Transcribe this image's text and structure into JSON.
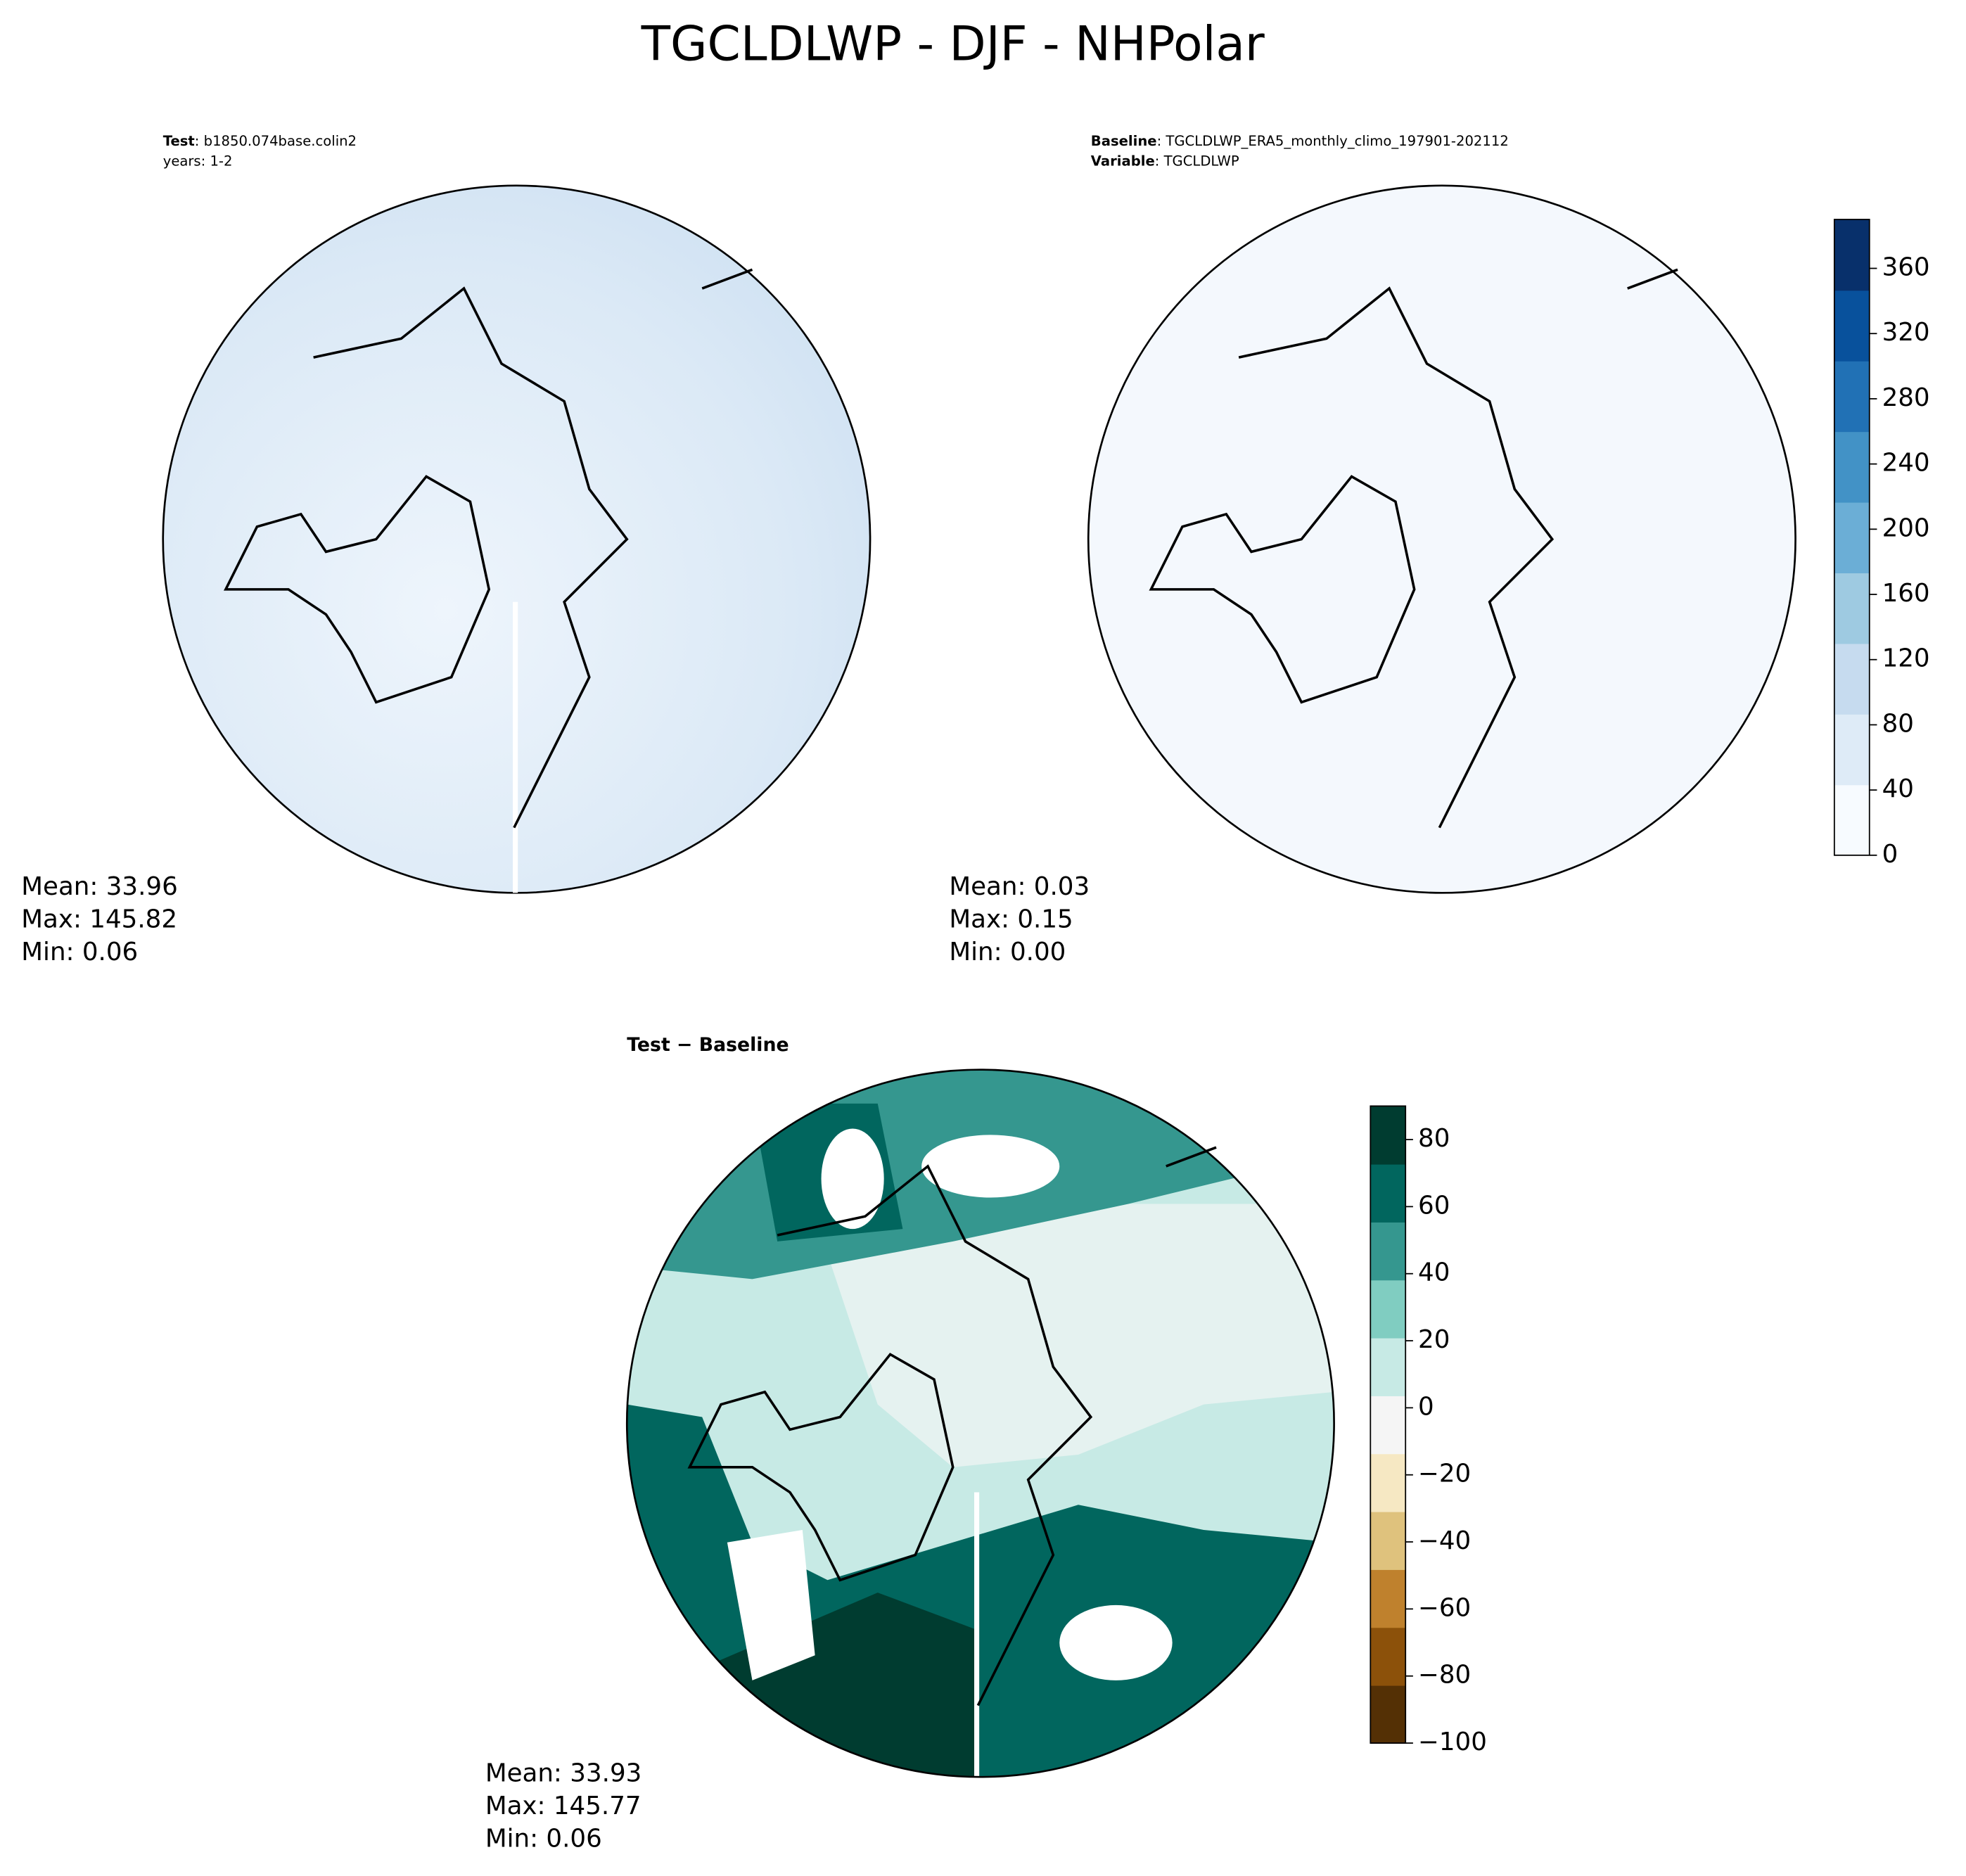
{
  "chart_data": [
    {
      "type": "contour",
      "title_label": "Test",
      "title_value": ": b1850.074base.colin2",
      "subtitle": "years: 1-2",
      "stats": [
        "Mean: 33.96",
        "Max: 145.82",
        "Min:  0.06"
      ]
    },
    {
      "type": "contour",
      "title_label": "Baseline",
      "title_value": ": TGCLDLWP_ERA5_monthly_climo_197901-202112",
      "subtitle_label": "Variable",
      "subtitle_value": ": TGCLDLWP",
      "stats": [
        "Mean:  0.03",
        "Max:  0.15",
        "Min:  0.00"
      ],
      "colorbar": {
        "lim": [
          0,
          390
        ],
        "ticks": [
          0,
          40,
          80,
          120,
          160,
          200,
          240,
          280,
          320,
          360
        ],
        "colors": [
          "#f7fbff",
          "#deebf7",
          "#c6dbef",
          "#9ecae1",
          "#6baed6",
          "#4292c6",
          "#2171b5",
          "#08519c",
          "#08306b"
        ]
      }
    },
    {
      "type": "contour",
      "title": "Test − Baseline",
      "stats": [
        "Mean: 33.93",
        "Max: 145.77",
        "Min:  0.06"
      ],
      "colorbar": {
        "lim": [
          -100,
          90
        ],
        "ticks": [
          {
            "value": -100,
            "label": "−100"
          },
          {
            "value": -80,
            "label": "−80"
          },
          {
            "value": -60,
            "label": "−60"
          },
          {
            "value": -40,
            "label": "−40"
          },
          {
            "value": -20,
            "label": "−20"
          },
          0,
          20,
          40,
          60,
          80
        ],
        "colors": [
          "#543005",
          "#8c510a",
          "#bf812d",
          "#dfc27d",
          "#f6e8c3",
          "#f5f5f5",
          "#c7eae5",
          "#80cdc1",
          "#35978f",
          "#01665e",
          "#003c30"
        ]
      }
    }
  ],
  "title": "TGCLDLWP - DJF - NHPolar"
}
